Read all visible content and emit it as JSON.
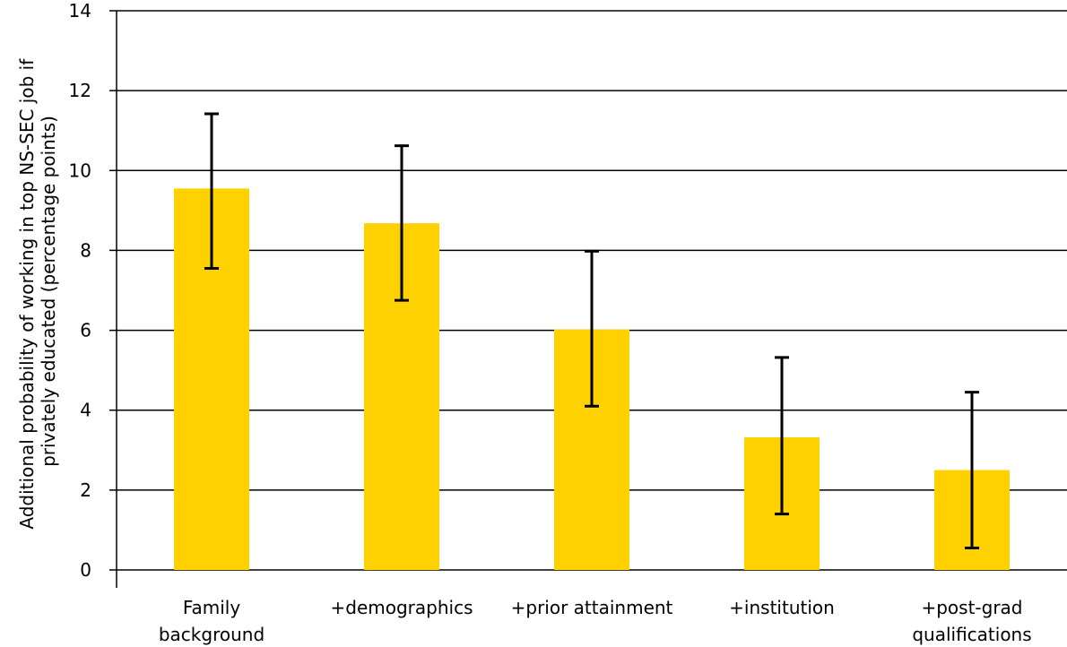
{
  "chart_data": {
    "type": "bar",
    "title": "",
    "xlabel": "",
    "ylabel_lines": [
      "Additional probability of working in top NS-SEC job if",
      "privately educated (percentage points)"
    ],
    "categories": [
      [
        "Family",
        "background"
      ],
      [
        "+demographics"
      ],
      [
        "+prior attainment"
      ],
      [
        "+institution"
      ],
      [
        "+post-grad",
        "qualifications"
      ]
    ],
    "values": [
      9.55,
      8.68,
      6.02,
      3.32,
      2.5
    ],
    "ci_lower": [
      7.55,
      6.75,
      4.1,
      1.4,
      0.55
    ],
    "ci_upper": [
      11.42,
      10.62,
      7.98,
      5.32,
      4.45
    ],
    "ylim": [
      0,
      14
    ],
    "yticks": [
      0,
      2,
      4,
      6,
      8,
      10,
      12,
      14
    ],
    "grid": true,
    "bar_color": "#FFD100",
    "errorbar_color": "#000000"
  }
}
